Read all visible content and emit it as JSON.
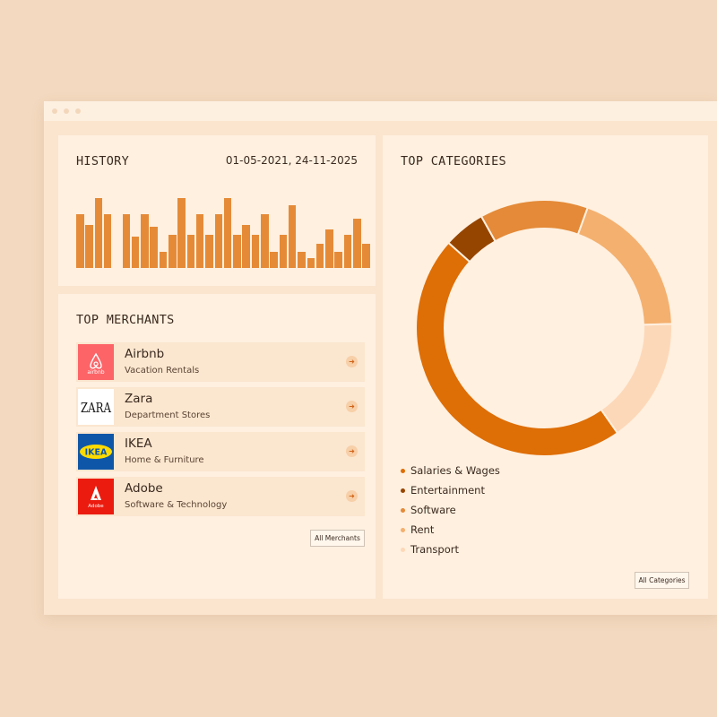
{
  "history": {
    "title": "HISTORY",
    "date_range": "01-05-2021, 24-11-2025",
    "bar_color": "#e58b38",
    "values": [
      60,
      48,
      78,
      60,
      0,
      60,
      35,
      60,
      46,
      18,
      37,
      78,
      37,
      60,
      37,
      60,
      78,
      37,
      48,
      37,
      60,
      18,
      37,
      70,
      18,
      11,
      27,
      43,
      18,
      37,
      55,
      27
    ]
  },
  "merchants": {
    "title": "TOP MERCHANTS",
    "items": [
      {
        "name": "Airbnb",
        "category": "Vacation Rentals",
        "logo_text": "airbnb",
        "logo_icon": "airbnb-logo-icon"
      },
      {
        "name": "Zara",
        "category": "Department Stores",
        "logo_text": "ZARA",
        "logo_icon": "zara-logo-icon"
      },
      {
        "name": "IKEA",
        "category": "Home & Furniture",
        "logo_text": "IKEA",
        "logo_icon": "ikea-logo-icon"
      },
      {
        "name": "Adobe",
        "category": "Software & Technology",
        "logo_text": "Adobe",
        "logo_icon": "adobe-logo-icon"
      }
    ],
    "all_button": "All Merchants",
    "arrow_icon": "arrow-right-icon"
  },
  "categories": {
    "title": "TOP CATEGORIES",
    "all_button": "All Categories",
    "chart_data": {
      "type": "pie",
      "categories": [
        "Salaries & Wages",
        "Entertainment",
        "Software",
        "Rent",
        "Transport"
      ],
      "values": [
        44,
        5,
        13,
        18,
        15
      ],
      "colors": [
        "#de6e06",
        "#964501",
        "#e48a38",
        "#f4b06f",
        "#fdd8b8"
      ]
    }
  }
}
